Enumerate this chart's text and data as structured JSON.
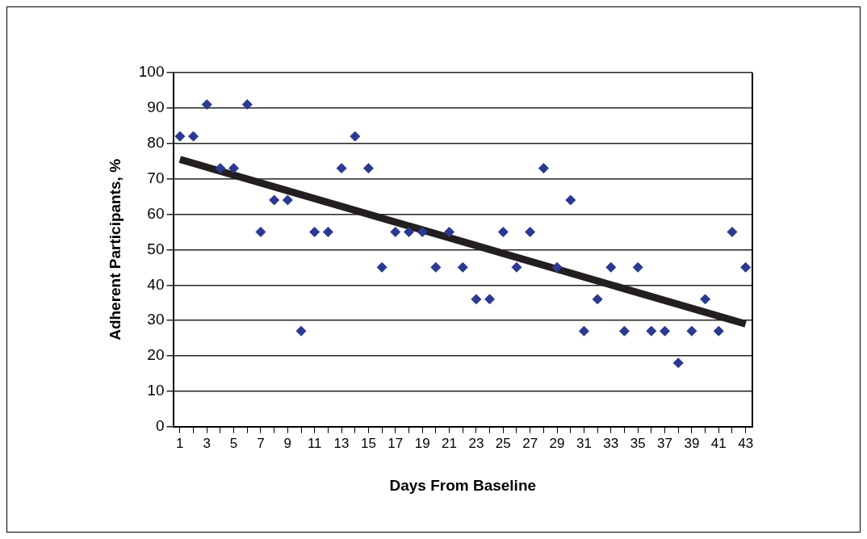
{
  "chart_data": {
    "type": "scatter",
    "xlabel": "Days From Baseline",
    "ylabel": "Adherent Participants, %",
    "x": [
      1,
      2,
      3,
      4,
      5,
      6,
      7,
      8,
      9,
      10,
      11,
      12,
      13,
      14,
      15,
      16,
      17,
      18,
      19,
      20,
      21,
      22,
      23,
      24,
      25,
      26,
      27,
      28,
      29,
      30,
      31,
      32,
      33,
      34,
      35,
      36,
      37,
      38,
      39,
      40,
      41,
      42,
      43
    ],
    "series": [
      {
        "color": "#2b3990",
        "values": [
          82,
          82,
          91,
          73,
          73,
          91,
          55,
          64,
          64,
          27,
          55,
          55,
          73,
          82,
          73,
          45,
          55,
          55,
          55,
          45,
          55,
          45,
          36,
          36,
          55,
          45,
          55,
          73,
          45,
          64,
          27,
          36,
          45,
          27,
          45,
          27,
          27,
          18,
          27,
          36,
          27,
          55,
          45
        ]
      },
      {
        "type": "line",
        "color": "#231f20",
        "marker": "none",
        "x": [
          1,
          43
        ],
        "values": [
          75.5,
          29
        ]
      }
    ],
    "xlim": [
      0.5,
      43.5
    ],
    "xticks": [
      1,
      {
        "value": 2,
        "label": null
      },
      3,
      {
        "value": 4,
        "label": null
      },
      5,
      {
        "value": 6,
        "label": null
      },
      7,
      {
        "value": 8,
        "label": null
      },
      9,
      {
        "value": 10,
        "label": null
      },
      11,
      {
        "value": 12,
        "label": null
      },
      13,
      {
        "value": 14,
        "label": null
      },
      15,
      {
        "value": 16,
        "label": null
      },
      17,
      {
        "value": 18,
        "label": null
      },
      19,
      {
        "value": 20,
        "label": null
      },
      21,
      {
        "value": 22,
        "label": null
      },
      23,
      {
        "value": 24,
        "label": null
      },
      25,
      {
        "value": 26,
        "label": null
      },
      27,
      {
        "value": 28,
        "label": null
      },
      29,
      {
        "value": 30,
        "label": null
      },
      31,
      {
        "value": 32,
        "label": null
      },
      33,
      {
        "value": 34,
        "label": null
      },
      35,
      {
        "value": 36,
        "label": null
      },
      37,
      {
        "value": 38,
        "label": null
      },
      39,
      {
        "value": 40,
        "label": null
      },
      41,
      {
        "value": 42,
        "label": null
      },
      43
    ],
    "ylim": [
      0,
      100
    ],
    "yticks": [
      0,
      10,
      20,
      30,
      40,
      50,
      60,
      70,
      80,
      90,
      100
    ],
    "grid": "y",
    "legend": false,
    "marker": "diamond"
  }
}
